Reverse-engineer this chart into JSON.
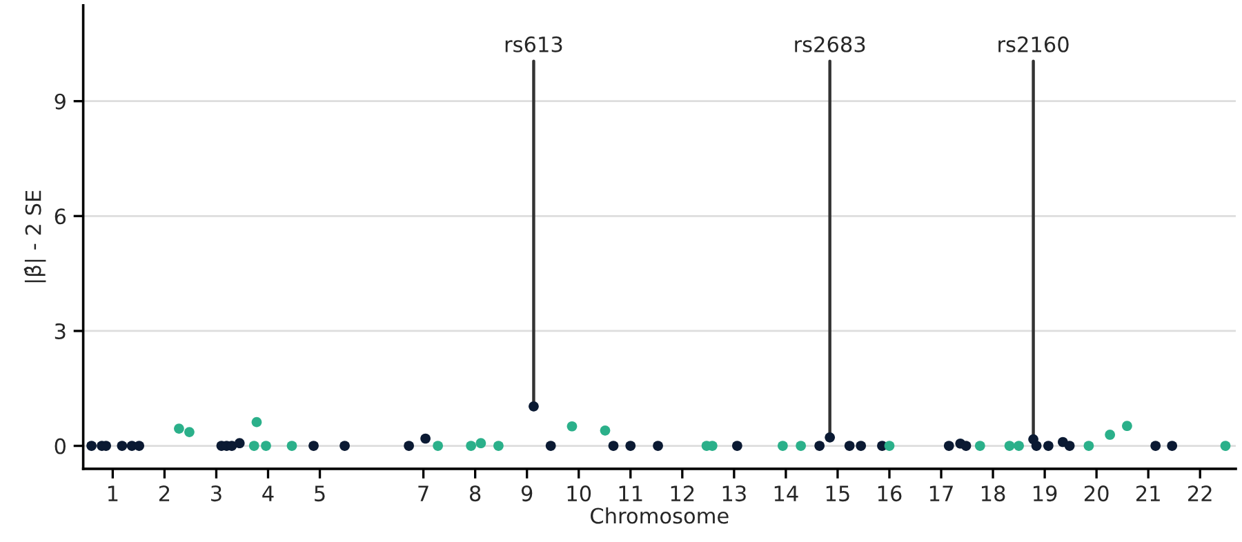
{
  "chart_data": {
    "type": "scatter",
    "xlabel": "Chromosome",
    "ylabel": "|β̂| - 2 SE",
    "xlim": [
      0.43,
      22.69
    ],
    "ylim": [
      -0.6,
      11.5
    ],
    "yticks": [
      0,
      3,
      6,
      9
    ],
    "xticks": [
      1,
      2,
      3,
      4,
      5,
      7,
      8,
      9,
      10,
      11,
      12,
      13,
      14,
      15,
      16,
      17,
      18,
      19,
      20,
      21,
      22
    ],
    "grid": "y",
    "marker": "circle",
    "legend": false,
    "series": [
      {
        "color": "#0b1a33",
        "x": [
          0.59,
          0.79,
          0.87,
          1.18,
          1.37,
          1.51,
          3.1,
          3.2,
          3.3,
          3.45,
          4.88,
          5.48,
          6.72,
          7.04,
          9.13,
          9.46,
          10.67,
          11.0,
          11.53,
          13.06,
          14.65,
          14.85,
          15.23,
          15.45,
          15.86,
          17.15,
          17.37,
          17.48,
          18.78,
          18.84,
          19.07,
          19.35,
          19.48,
          21.14,
          21.46
        ],
        "values": [
          0,
          0,
          0,
          0,
          0,
          0,
          0,
          0,
          0,
          0.07,
          0,
          0,
          0,
          0.19,
          1.03,
          0,
          0,
          0,
          0,
          0,
          0,
          0.22,
          0,
          0,
          0,
          0,
          0.06,
          0,
          0.17,
          0,
          0,
          0.1,
          0,
          0,
          0
        ]
      },
      {
        "color": "#2bb08a",
        "x": [
          2.28,
          2.48,
          3.73,
          3.78,
          3.96,
          4.46,
          7.28,
          7.92,
          8.11,
          8.45,
          9.87,
          10.51,
          12.47,
          12.58,
          13.94,
          14.29,
          16.0,
          17.75,
          18.32,
          18.5,
          19.85,
          20.26,
          20.59,
          22.49
        ],
        "values": [
          0.45,
          0.36,
          0,
          0.62,
          0,
          0,
          0,
          0,
          0.07,
          0,
          0.51,
          0.4,
          0,
          0,
          0,
          0,
          0,
          0,
          0,
          0,
          0,
          0.29,
          0.52,
          0
        ]
      }
    ],
    "annotations": [
      {
        "text": "rs613",
        "x": 9.13,
        "y": 1.03
      },
      {
        "text": "rs2683",
        "x": 14.85,
        "y": 0.22
      },
      {
        "text": "rs2160",
        "x": 18.78,
        "y": 0.17
      }
    ]
  }
}
